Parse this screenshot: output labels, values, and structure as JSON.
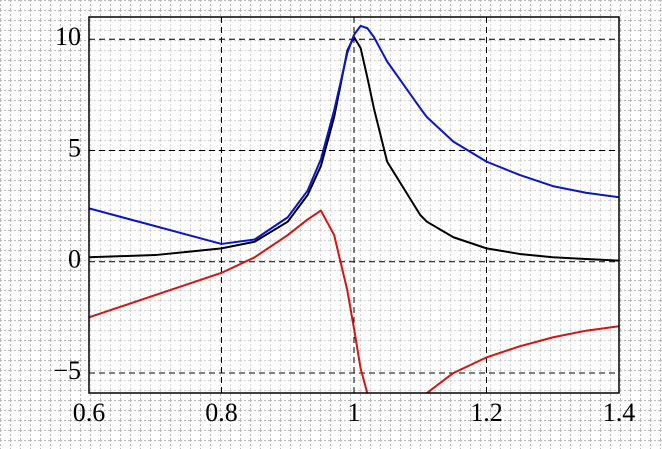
{
  "chart_data": {
    "type": "line",
    "x": [
      0.6,
      0.65,
      0.7,
      0.75,
      0.8,
      0.85,
      0.9,
      0.93,
      0.95,
      0.97,
      0.99,
      1.0,
      1.01,
      1.02,
      1.03,
      1.05,
      1.1,
      1.11,
      1.15,
      1.2,
      1.25,
      1.3,
      1.35,
      1.4
    ],
    "series": [
      {
        "color": "#000000",
        "values": [
          0.2,
          0.25,
          0.3,
          0.45,
          0.6,
          0.9,
          1.8,
          3.0,
          4.3,
          6.5,
          9.5,
          10.1,
          9.6,
          8.3,
          6.9,
          4.5,
          2.1,
          1.8,
          1.1,
          0.6,
          0.35,
          0.2,
          0.12,
          0.05
        ]
      },
      {
        "color": "#0a14c8",
        "values": [
          2.4,
          2.0,
          1.6,
          1.2,
          0.8,
          1.0,
          2.0,
          3.2,
          4.6,
          6.8,
          9.4,
          10.2,
          10.6,
          10.5,
          10.1,
          9.0,
          6.9,
          6.5,
          5.4,
          4.5,
          3.9,
          3.4,
          3.1,
          2.9
        ]
      },
      {
        "color": "#d21414",
        "values": [
          -2.5,
          -2.0,
          -1.5,
          -1.0,
          -0.5,
          0.2,
          1.2,
          1.9,
          2.3,
          1.2,
          -1.3,
          -3.0,
          -4.8,
          -5.9,
          null,
          null,
          null,
          -5.9,
          -5.0,
          -4.3,
          -3.8,
          -3.4,
          -3.1,
          -2.9
        ]
      }
    ],
    "xlim": [
      0.6,
      1.4
    ],
    "ylim": [
      -5.9,
      11
    ],
    "xticks": [
      0.6,
      0.8,
      1,
      1.2,
      1.4
    ],
    "yticks": [
      {
        "value": -5,
        "label": "−5"
      },
      0,
      5,
      10
    ],
    "grid": true
  }
}
